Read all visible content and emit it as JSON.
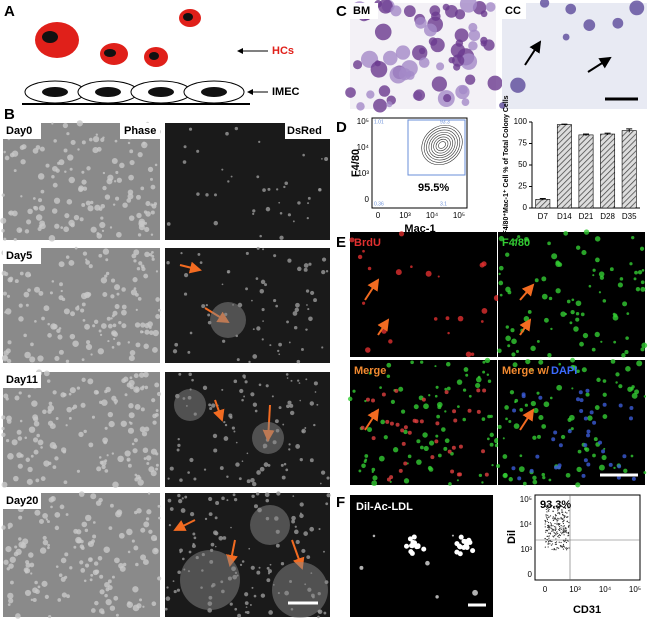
{
  "panels": {
    "A": {
      "label": "A",
      "hcs": "HCs",
      "imec": "IMEC"
    },
    "B": {
      "label": "B",
      "phase": "Phase",
      "dsred": "DsRed",
      "days": [
        "Day0",
        "Day5",
        "Day11",
        "Day20"
      ]
    },
    "C": {
      "label": "C",
      "bm": "BM",
      "cc": "CC"
    },
    "D": {
      "label": "D",
      "y_label": "F4/80",
      "x_label": "Mac-1",
      "percent": "95.5%",
      "yticks": [
        "10⁵",
        "10⁴",
        "10³",
        "0"
      ],
      "xticks": [
        "0",
        "10³",
        "10⁴",
        "10⁵"
      ],
      "quadrants": [
        "1.01",
        "93.3",
        "0.36",
        "3.1"
      ]
    },
    "E": {
      "label": "E",
      "brdu": "BrdU",
      "f480": "F4/80",
      "merge": "Merge",
      "merge_w": "Merge w/",
      "dapi": "DAPI"
    },
    "F": {
      "label": "F",
      "image_label": "Dil-Ac-LDL",
      "percent": "93.3%",
      "y_label": "Dil",
      "x_label": "CD31",
      "yticks": [
        "10⁵",
        "10⁴",
        "10³",
        "0"
      ],
      "xticks": [
        "0",
        "10³",
        "10⁴",
        "10⁵"
      ]
    }
  },
  "chart_data": {
    "type": "bar",
    "y_label": "F4/80⁺Mac-1⁺ Cell % of Total Colony Cells",
    "categories": [
      "D7",
      "D14",
      "D21",
      "D28",
      "D35"
    ],
    "values": [
      10,
      97,
      85,
      86,
      90
    ],
    "errors": [
      1,
      0.5,
      1,
      1,
      2
    ],
    "ylim": [
      0,
      100
    ],
    "yticks": [
      0,
      25,
      50,
      75,
      100
    ],
    "color": "#888888"
  }
}
